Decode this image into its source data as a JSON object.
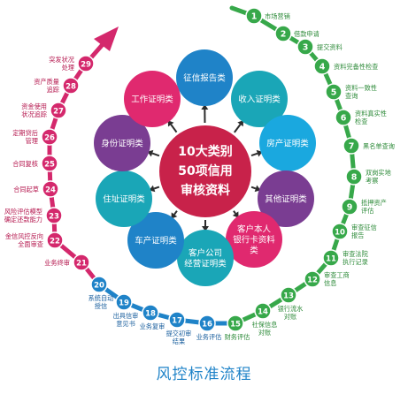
{
  "center": {
    "line1": "10大类别",
    "line2": "50项信用",
    "line3": "审核资料",
    "color": "#c8224a"
  },
  "categories": [
    {
      "label": [
        "征信报告类"
      ],
      "color": "#1f83c8"
    },
    {
      "label": [
        "收入证明类"
      ],
      "color": "#1aa6b7"
    },
    {
      "label": [
        "房产证明类"
      ],
      "color": "#1aa8df"
    },
    {
      "label": [
        "其他证明类"
      ],
      "color": "#7a3d92"
    },
    {
      "label": [
        "客户本人",
        "银行卡资料",
        "类"
      ],
      "color": "#e0296f"
    },
    {
      "label": [
        "客户公司",
        "经营证明类"
      ],
      "color": "#1aa6b7"
    },
    {
      "label": [
        "车产证明类"
      ],
      "color": "#1f83c8"
    },
    {
      "label": [
        "住址证明类"
      ],
      "color": "#1aa6b7"
    },
    {
      "label": [
        "身份证明类"
      ],
      "color": "#7a3d92"
    },
    {
      "label": [
        "工作证明类"
      ],
      "color": "#e0296f"
    }
  ],
  "steps": [
    {
      "n": "1",
      "label": [
        "市场营销"
      ]
    },
    {
      "n": "2",
      "label": [
        "借款申请"
      ]
    },
    {
      "n": "3",
      "label": [
        "提交资料"
      ]
    },
    {
      "n": "4",
      "label": [
        "资料完备性检查"
      ]
    },
    {
      "n": "5",
      "label": [
        "资料一致性",
        "查询"
      ]
    },
    {
      "n": "6",
      "label": [
        "资料真实性",
        "检查"
      ]
    },
    {
      "n": "7",
      "label": [
        "黑名单查询"
      ]
    },
    {
      "n": "8",
      "label": [
        "双岗实地",
        "考察"
      ]
    },
    {
      "n": "9",
      "label": [
        "抵押资产",
        "评估"
      ]
    },
    {
      "n": "10",
      "label": [
        "审查征信",
        "报告"
      ]
    },
    {
      "n": "11",
      "label": [
        "审查法院",
        "执行记录"
      ]
    },
    {
      "n": "12",
      "label": [
        "审查工商",
        "信息"
      ]
    },
    {
      "n": "13",
      "label": [
        "银行流水",
        "对账"
      ]
    },
    {
      "n": "14",
      "label": [
        "社保信息",
        "对账"
      ]
    },
    {
      "n": "15",
      "label": [
        "财务评估"
      ]
    },
    {
      "n": "16",
      "label": [
        "业务评估"
      ]
    },
    {
      "n": "17",
      "label": [
        "提交初审",
        "结果"
      ]
    },
    {
      "n": "18",
      "label": [
        "业务复审"
      ]
    },
    {
      "n": "19",
      "label": [
        "出具信审",
        "意见书"
      ]
    },
    {
      "n": "20",
      "label": [
        "系统自动",
        "授信"
      ]
    },
    {
      "n": "21",
      "label": [
        "业务终审"
      ]
    },
    {
      "n": "22",
      "label": [
        "金信风控反向",
        "全面审查"
      ]
    },
    {
      "n": "23",
      "label": [
        "风险评估模型",
        "确定还款能力"
      ]
    },
    {
      "n": "24",
      "label": [
        "合同起草"
      ]
    },
    {
      "n": "25",
      "label": [
        "合同复核"
      ]
    },
    {
      "n": "26",
      "label": [
        "定期贷后",
        "管理"
      ]
    },
    {
      "n": "27",
      "label": [
        "资金使用",
        "状况追踪"
      ]
    },
    {
      "n": "28",
      "label": [
        "资产质量",
        "追踪"
      ]
    },
    {
      "n": "29",
      "label": [
        "突发状况",
        "处理"
      ]
    }
  ],
  "caption": "风控标准流程",
  "colors": {
    "green": "#37a84a",
    "blue": "#1f83c8",
    "pink": "#d4286c",
    "arrow_pink": "#e0296f",
    "label_green": "#2e8b3a",
    "label_blue": "#1a5f9e",
    "label_pink": "#b5184f"
  }
}
